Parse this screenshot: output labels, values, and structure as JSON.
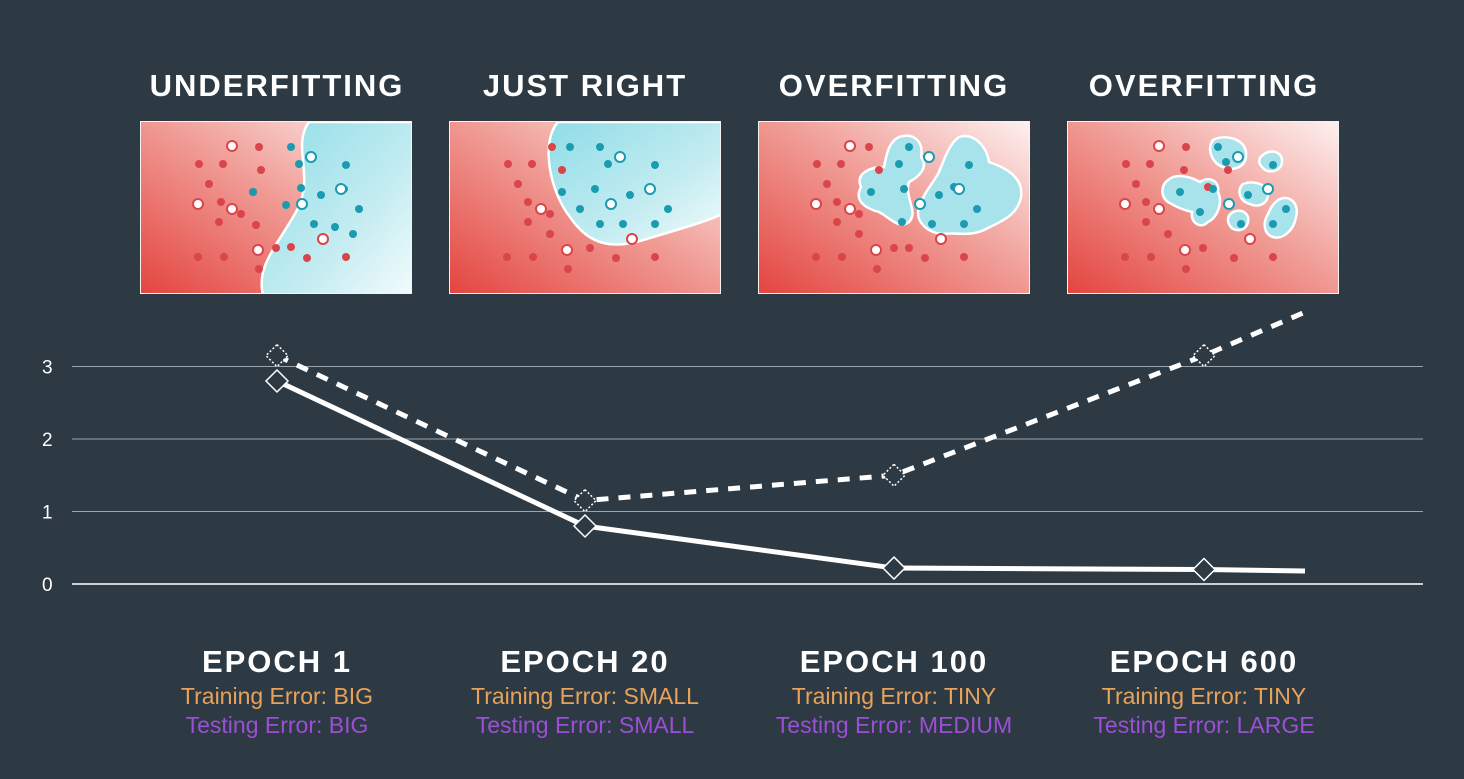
{
  "panels": [
    {
      "title": "UNDERFITTING"
    },
    {
      "title": "JUST RIGHT"
    },
    {
      "title": "OVERFITTING"
    },
    {
      "title": "OVERFITTING"
    }
  ],
  "epochs": [
    {
      "label": "EPOCH 1",
      "training": "Training Error: BIG",
      "testing": "Testing Error: BIG"
    },
    {
      "label": "EPOCH 20",
      "training": "Training Error: SMALL",
      "testing": "Testing Error: SMALL"
    },
    {
      "label": "EPOCH 100",
      "training": "Training Error: TINY",
      "testing": "Testing Error: MEDIUM"
    },
    {
      "label": "EPOCH 600",
      "training": "Training Error: TINY",
      "testing": "Testing Error: LARGE"
    }
  ],
  "colors": {
    "background": "#2d3a44",
    "training_text": "#e8a25a",
    "testing_text": "#9c4fd6",
    "red_region": "#e8504f",
    "blue_region": "#9fe1ea",
    "red_point": "#d9454a",
    "blue_point": "#1a9bb0"
  },
  "chart_data": {
    "type": "line",
    "x": [
      "EPOCH 1",
      "EPOCH 20",
      "EPOCH 100",
      "EPOCH 600"
    ],
    "yticks": [
      0,
      1,
      2,
      3
    ],
    "ylim": [
      0,
      3
    ],
    "grid": true,
    "series": [
      {
        "style": "solid",
        "values": [
          2.8,
          0.8,
          0.22,
          0.2
        ],
        "tail": 0.18
      },
      {
        "style": "dashed",
        "values": [
          3.15,
          1.15,
          1.5,
          3.15
        ],
        "tail": 3.75
      }
    ]
  }
}
